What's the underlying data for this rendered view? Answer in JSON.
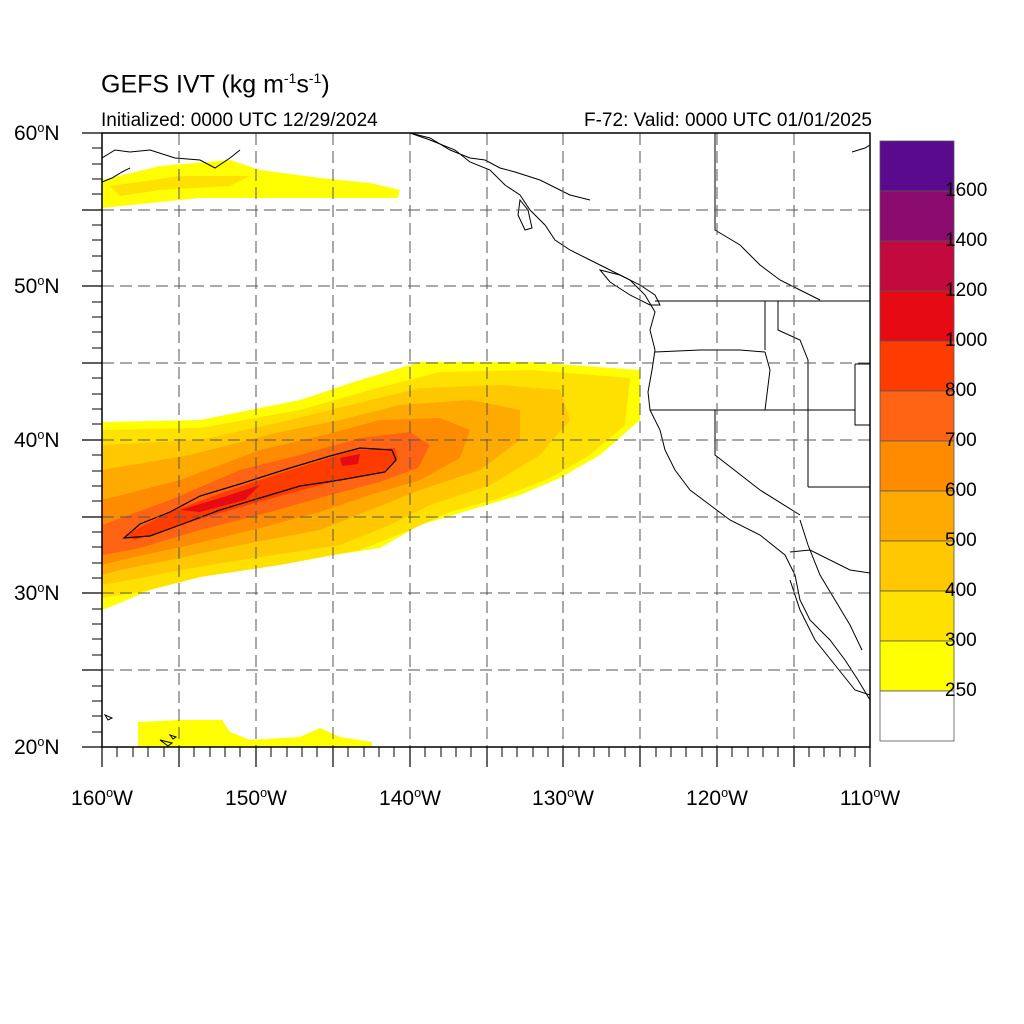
{
  "header": {
    "title_main": "GEFS IVT (kg m",
    "title_exp1": "-1",
    "title_mid": "s",
    "title_exp2": "-1",
    "title_end": ")",
    "initialized": "Initialized: 0000 UTC 12/29/2024",
    "valid": "F-72: Valid: 0000 UTC 01/01/2025"
  },
  "axes": {
    "lat_labels": [
      {
        "deg": "60",
        "suffix": "N"
      },
      {
        "deg": "50",
        "suffix": "N"
      },
      {
        "deg": "40",
        "suffix": "N"
      },
      {
        "deg": "30",
        "suffix": "N"
      },
      {
        "deg": "20",
        "suffix": "N"
      }
    ],
    "lon_labels": [
      {
        "deg": "160",
        "suffix": "W"
      },
      {
        "deg": "150",
        "suffix": "W"
      },
      {
        "deg": "140",
        "suffix": "W"
      },
      {
        "deg": "130",
        "suffix": "W"
      },
      {
        "deg": "120",
        "suffix": "W"
      },
      {
        "deg": "110",
        "suffix": "W"
      }
    ],
    "lat_range": [
      20,
      60
    ],
    "lon_range": [
      -160,
      -110
    ],
    "grid": "dashed every 5 degrees"
  },
  "colorbar": {
    "labels": [
      "1600",
      "1400",
      "1200",
      "1000",
      "800",
      "700",
      "600",
      "500",
      "400",
      "300",
      "250"
    ],
    "colors_top_to_bottom": [
      "#5a0a8c",
      "#8b0a6e",
      "#c20a3e",
      "#e60a14",
      "#ff3c00",
      "#ff6414",
      "#ff8c00",
      "#ffaa00",
      "#ffc800",
      "#ffe100",
      "#ffff00",
      "#ffffff"
    ]
  },
  "chart_data": {
    "type": "heatmap",
    "variable": "IVT",
    "units": "kg m-1 s-1",
    "levels": [
      250,
      300,
      400,
      500,
      600,
      700,
      800,
      1000,
      1200,
      1400,
      1600
    ],
    "features": [
      {
        "name": "atmospheric river core",
        "max_value_range": "800-1000",
        "from_lon": -160,
        "to_lon": -125,
        "from_lat": 30,
        "to_lat": 45
      },
      {
        "name": "gulf of alaska band",
        "value_range": "250-400",
        "lat_approx": 56
      },
      {
        "name": "subtropical patches",
        "value_range": "250-300",
        "lat_approx": 20.5
      }
    ]
  }
}
